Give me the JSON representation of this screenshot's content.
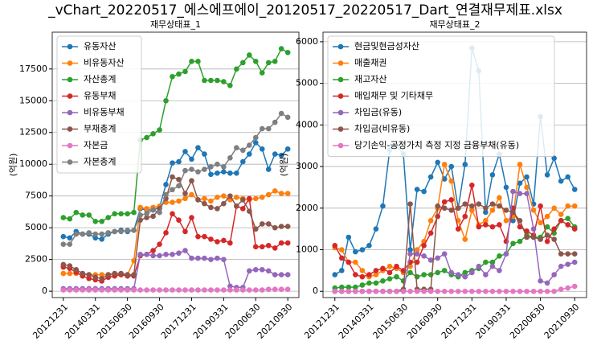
{
  "title": "_vChart_20220517_에스에프에이_20120517_20220517_Dart_연결재무제표.xlsx",
  "chart_data": [
    {
      "type": "line",
      "title": "재무상태표_1",
      "ylabel": "(억원)",
      "legend": "upper left",
      "grid": true,
      "categories": [
        "20121231",
        null,
        null,
        null,
        null,
        "20140331",
        null,
        null,
        null,
        null,
        "20150630",
        null,
        null,
        null,
        null,
        "20160930",
        null,
        null,
        null,
        null,
        "20171231",
        null,
        null,
        null,
        null,
        "20190331",
        null,
        null,
        null,
        null,
        "20200630",
        null,
        null,
        null,
        null,
        "20210930"
      ],
      "ylim": [
        -500,
        20400
      ],
      "yticks": [
        0,
        2500,
        5000,
        7500,
        10000,
        12500,
        15000,
        17500
      ],
      "series": [
        {
          "name": "유동자산",
          "color": "#1f77b4",
          "values": [
            4300,
            4200,
            4700,
            4500,
            4500,
            4200,
            4100,
            4500,
            4700,
            4800,
            4700,
            4800,
            6500,
            6400,
            6400,
            6600,
            8400,
            10100,
            10200,
            11000,
            10400,
            11300,
            10800,
            9200,
            9300,
            9400,
            9300,
            9300,
            10200,
            10800,
            11700,
            11200,
            9600,
            10800,
            10700,
            11200
          ]
        },
        {
          "name": "비유동자산",
          "color": "#ff7f0e",
          "values": [
            1400,
            1400,
            1400,
            1300,
            1300,
            1300,
            1300,
            1300,
            1300,
            1300,
            1300,
            2400,
            6600,
            6500,
            6600,
            6700,
            7000,
            7000,
            7100,
            7300,
            7600,
            7200,
            7300,
            7100,
            7400,
            7500,
            7200,
            7400,
            7300,
            7200,
            7300,
            7400,
            7600,
            7900,
            7700,
            7700
          ]
        },
        {
          "name": "자산총계",
          "color": "#2ca02c",
          "values": [
            5800,
            5700,
            6200,
            6000,
            6000,
            5500,
            5500,
            5800,
            6100,
            6100,
            6100,
            6200,
            11900,
            12100,
            12400,
            12700,
            15000,
            16900,
            17100,
            17300,
            18100,
            18100,
            16600,
            16600,
            16600,
            16500,
            16200,
            17500,
            18000,
            18600,
            18100,
            17200,
            18000,
            18100,
            19100,
            18800
          ]
        },
        {
          "name": "유동부채",
          "color": "#d62728",
          "values": [
            1900,
            1800,
            1500,
            1200,
            1000,
            900,
            800,
            1100,
            1200,
            1300,
            1200,
            1200,
            2800,
            2900,
            3200,
            3700,
            4600,
            6100,
            5600,
            4700,
            5800,
            4300,
            4300,
            4100,
            3900,
            4000,
            3800,
            6700,
            6500,
            7300,
            3500,
            3500,
            3600,
            3400,
            3800,
            3800
          ]
        },
        {
          "name": "비유동부채",
          "color": "#9467bd",
          "values": [
            200,
            200,
            200,
            200,
            200,
            200,
            200,
            200,
            200,
            200,
            200,
            200,
            2900,
            2900,
            2800,
            2800,
            2900,
            2900,
            3000,
            3200,
            2600,
            2600,
            2600,
            2500,
            2600,
            2500,
            400,
            300,
            300,
            1600,
            1700,
            1700,
            1600,
            1300,
            1300,
            1300
          ]
        },
        {
          "name": "부채총계",
          "color": "#8c564b",
          "values": [
            2100,
            2000,
            1700,
            1400,
            1300,
            1100,
            1000,
            1300,
            1400,
            1400,
            1300,
            1300,
            5600,
            5800,
            5900,
            6500,
            7300,
            9000,
            8800,
            7700,
            8700,
            7200,
            6900,
            6600,
            6500,
            6900,
            7500,
            6700,
            7200,
            6300,
            4900,
            5300,
            5300,
            5000,
            5100,
            5100
          ]
        },
        {
          "name": "자본금",
          "color": "#e377c2",
          "values": [
            100,
            100,
            100,
            100,
            100,
            100,
            100,
            100,
            100,
            100,
            100,
            100,
            100,
            100,
            100,
            100,
            100,
            100,
            100,
            100,
            100,
            100,
            100,
            100,
            100,
            100,
            100,
            100,
            100,
            100,
            100,
            100,
            150,
            150,
            150,
            150
          ]
        },
        {
          "name": "자본총계",
          "color": "#7f7f7f",
          "values": [
            3700,
            3700,
            4500,
            4500,
            4600,
            4500,
            4500,
            4600,
            4700,
            4700,
            4800,
            4800,
            6000,
            6100,
            6400,
            6200,
            7600,
            8000,
            8300,
            9500,
            9600,
            9400,
            9600,
            9800,
            10000,
            9800,
            10500,
            11300,
            11100,
            11500,
            12100,
            12800,
            12800,
            13300,
            14000,
            13700
          ]
        }
      ]
    },
    {
      "type": "line",
      "title": "재무상태표_2",
      "ylabel": "(억원)",
      "legend": "upper left",
      "grid": true,
      "categories": [
        "20121231",
        null,
        null,
        null,
        null,
        "20140331",
        null,
        null,
        null,
        null,
        "20150630",
        null,
        null,
        null,
        null,
        "20160930",
        null,
        null,
        null,
        null,
        "20171231",
        null,
        null,
        null,
        null,
        "20190331",
        null,
        null,
        null,
        null,
        "20200630",
        null,
        null,
        null,
        null,
        "20210930"
      ],
      "ylim": [
        -150,
        6230
      ],
      "yticks": [
        0,
        1000,
        2000,
        3000,
        4000,
        5000,
        6000
      ],
      "series": [
        {
          "name": "현금및현금성자산",
          "color": "#1f77b4",
          "values": [
            400,
            500,
            1300,
            950,
            1000,
            1100,
            1500,
            2050,
            3400,
            3500,
            3300,
            1000,
            2450,
            2400,
            2750,
            3100,
            2700,
            3000,
            2000,
            3050,
            5850,
            5300,
            1900,
            2800,
            3300,
            2500,
            1700,
            2600,
            2750,
            2100,
            4200,
            2800,
            3200,
            2650,
            2750,
            2450
          ]
        },
        {
          "name": "매출채권",
          "color": "#ff7f0e",
          "values": [
            1050,
            1000,
            700,
            700,
            500,
            350,
            400,
            500,
            600,
            550,
            450,
            600,
            1000,
            1200,
            1700,
            2000,
            3050,
            2650,
            1700,
            1250,
            1950,
            1600,
            1700,
            1950,
            2250,
            1700,
            1800,
            3050,
            2500,
            1950,
            1650,
            1800,
            2000,
            1850,
            2050,
            2050
          ]
        },
        {
          "name": "재고자산",
          "color": "#2ca02c",
          "values": [
            80,
            100,
            100,
            100,
            150,
            200,
            200,
            250,
            300,
            350,
            250,
            450,
            350,
            400,
            400,
            450,
            500,
            400,
            350,
            450,
            500,
            550,
            700,
            700,
            850,
            900,
            1150,
            1200,
            1350,
            1300,
            1300,
            1550,
            1400,
            1700,
            1750,
            1550
          ]
        },
        {
          "name": "매입채무 및 기타채무",
          "color": "#d62728",
          "values": [
            1100,
            800,
            700,
            400,
            350,
            400,
            500,
            550,
            450,
            600,
            500,
            700,
            700,
            1100,
            1400,
            1800,
            2150,
            2200,
            1500,
            1800,
            2550,
            1550,
            1600,
            1550,
            1600,
            1200,
            2000,
            1550,
            1450,
            1350,
            2050,
            1200,
            1500,
            1700,
            1600,
            1500
          ]
        },
        {
          "name": "차입금(유동)",
          "color": "#9467bd",
          "values": [
            0,
            0,
            0,
            0,
            0,
            0,
            0,
            0,
            0,
            0,
            0,
            900,
            900,
            850,
            750,
            800,
            900,
            450,
            400,
            350,
            450,
            600,
            400,
            600,
            500,
            900,
            2400,
            2350,
            2350,
            1500,
            250,
            200,
            400,
            600,
            650,
            700
          ]
        },
        {
          "name": "차입금(비유동)",
          "color": "#8c564b",
          "values": [
            0,
            0,
            0,
            0,
            0,
            0,
            0,
            0,
            0,
            0,
            50,
            2100,
            50,
            50,
            50,
            2050,
            2000,
            1950,
            2000,
            2100,
            2050,
            2100,
            2000,
            2100,
            2050,
            1950,
            1900,
            1700,
            1300,
            1300,
            1250,
            1350,
            1250,
            900,
            900,
            900
          ]
        },
        {
          "name": "당기손익-공정가치 측정 지정 금융부채(유동)",
          "color": "#e377c2",
          "values": [
            0,
            0,
            0,
            0,
            0,
            0,
            0,
            0,
            0,
            0,
            0,
            0,
            0,
            0,
            0,
            0,
            0,
            0,
            0,
            0,
            0,
            0,
            0,
            0,
            0,
            0,
            0,
            0,
            0,
            0,
            0,
            0,
            0,
            50,
            80,
            120
          ]
        }
      ]
    }
  ]
}
